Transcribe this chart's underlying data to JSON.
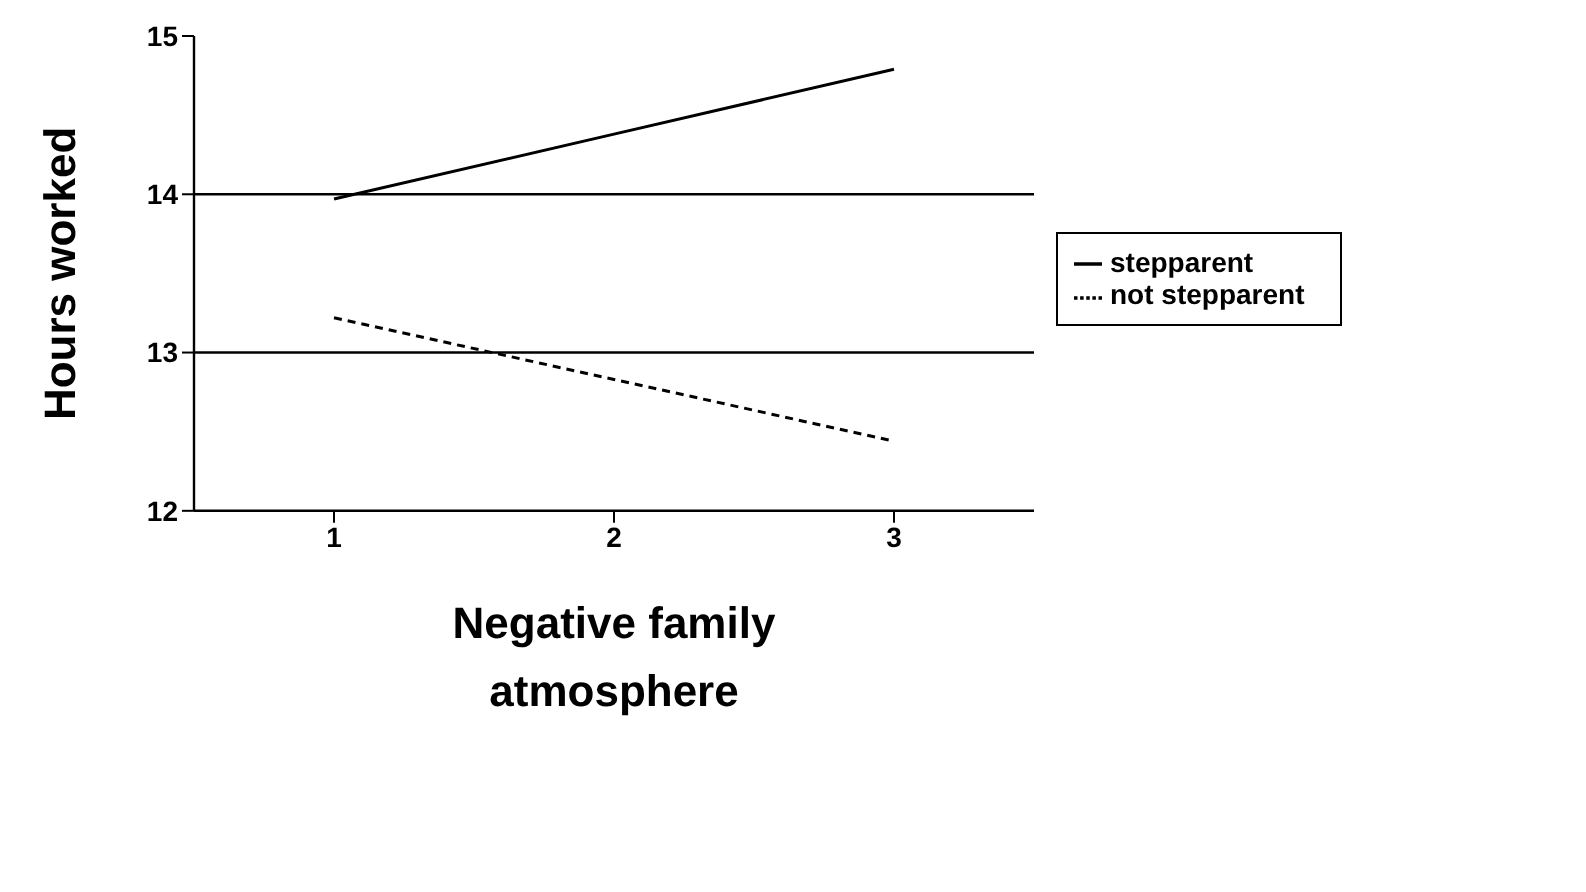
{
  "chart_data": {
    "type": "line",
    "xlabel": "Negative family atmosphere",
    "ylabel": "Hours worked",
    "categories": [
      "1",
      "2",
      "3"
    ],
    "series": [
      {
        "name": "stepparent",
        "color": "#000000",
        "values": [
          13.97,
          14.38,
          14.79
        ],
        "line_style": "solid"
      },
      {
        "name": "not stepparent",
        "color": "#000000",
        "values": [
          13.22,
          12.83,
          12.44
        ],
        "line_style": "dashed"
      }
    ],
    "ylim": [
      12,
      15
    ],
    "yticks": [
      12,
      13,
      14,
      15
    ],
    "grid": "y",
    "legend": "right",
    "marker": "none"
  }
}
